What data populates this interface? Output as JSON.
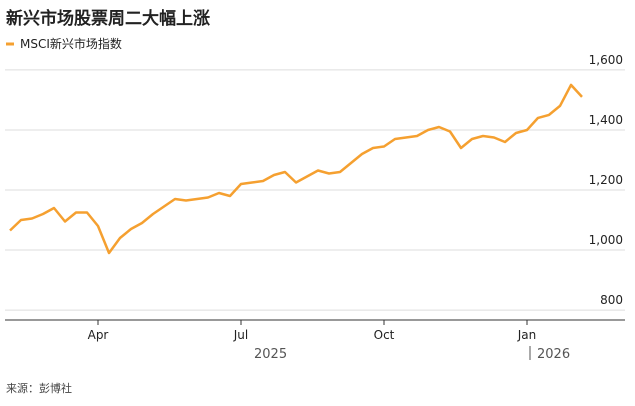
{
  "chart_data": {
    "type": "line",
    "title": "新兴市场股票周二大幅上涨",
    "source": "来源：彭博社",
    "categories": [
      null,
      null,
      null,
      null,
      null,
      null,
      null,
      null,
      "Apr",
      null,
      null,
      null,
      null,
      null,
      null,
      null,
      null,
      null,
      null,
      null,
      null,
      "Jul",
      null,
      null,
      null,
      null,
      null,
      null,
      null,
      null,
      null,
      null,
      null,
      null,
      "Oct",
      null,
      null,
      null,
      null,
      null,
      null,
      null,
      null,
      null,
      null,
      null,
      null,
      "Jan",
      null,
      null,
      null,
      null,
      null
    ],
    "years": [
      "2025",
      "2026"
    ],
    "series": [
      {
        "name": "MSCI新兴市场指数",
        "color": "#f5a030",
        "values": [
          1065,
          1100,
          1105,
          1120,
          1140,
          1095,
          1125,
          1125,
          1080,
          990,
          1040,
          1070,
          1090,
          1120,
          1145,
          1170,
          1165,
          1170,
          1175,
          1190,
          1180,
          1220,
          1225,
          1230,
          1250,
          1260,
          1225,
          1245,
          1265,
          1255,
          1260,
          1290,
          1320,
          1340,
          1345,
          1370,
          1375,
          1380,
          1400,
          1410,
          1395,
          1340,
          1370,
          1380,
          1375,
          1360,
          1390,
          1400,
          1440,
          1450,
          1480,
          1550,
          1510
        ]
      }
    ],
    "ylim": [
      767,
      1633
    ],
    "yticks": [
      {
        "value": 800,
        "label": "800"
      },
      {
        "value": 1000,
        "label": "1,000"
      },
      {
        "value": 1200,
        "label": "1,200"
      },
      {
        "value": 1400,
        "label": "1,400"
      },
      {
        "value": 1600,
        "label": "1,600"
      }
    ],
    "grid": true
  }
}
